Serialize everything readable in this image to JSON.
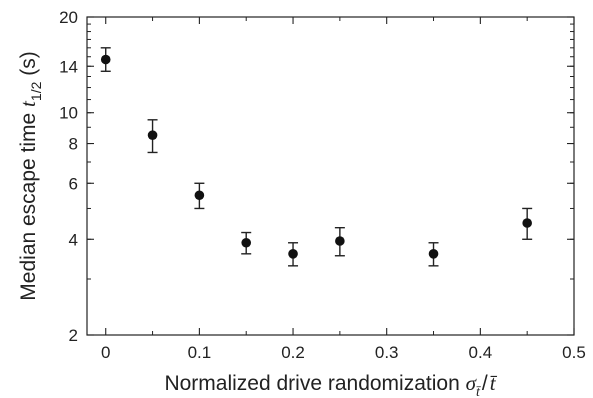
{
  "chart_data": {
    "type": "scatter",
    "x": [
      0,
      0.05,
      0.1,
      0.15,
      0.2,
      0.25,
      0.35,
      0.45
    ],
    "y": [
      14.7,
      8.5,
      5.5,
      3.9,
      3.6,
      3.95,
      3.6,
      4.5
    ],
    "y_err_low": [
      1.2,
      1.0,
      0.5,
      0.3,
      0.3,
      0.4,
      0.3,
      0.5
    ],
    "y_err_high": [
      1.3,
      1.0,
      0.5,
      0.3,
      0.3,
      0.4,
      0.3,
      0.5
    ],
    "xlim": [
      -0.02,
      0.5
    ],
    "ylim": [
      2,
      20
    ],
    "y_scale": "log",
    "x_ticks": [
      "0",
      "0.1",
      "0.2",
      "0.3",
      "0.4",
      "0.5"
    ],
    "y_ticks": [
      "2",
      "4",
      "6",
      "8",
      "10",
      "14",
      "20"
    ],
    "xlabel": {
      "prefix": "Normalized drive randomization ",
      "sigma": "σ",
      "sigma_sub": "t̄",
      "slash": "/",
      "tbar": "t̄"
    },
    "ylabel": {
      "prefix": "Median escape time ",
      "t": "t",
      "t_sub": "1/2",
      "unit": " (s)"
    },
    "grid": false,
    "legend": "none",
    "marker_color": "#111111",
    "axis_color": "#222222"
  }
}
